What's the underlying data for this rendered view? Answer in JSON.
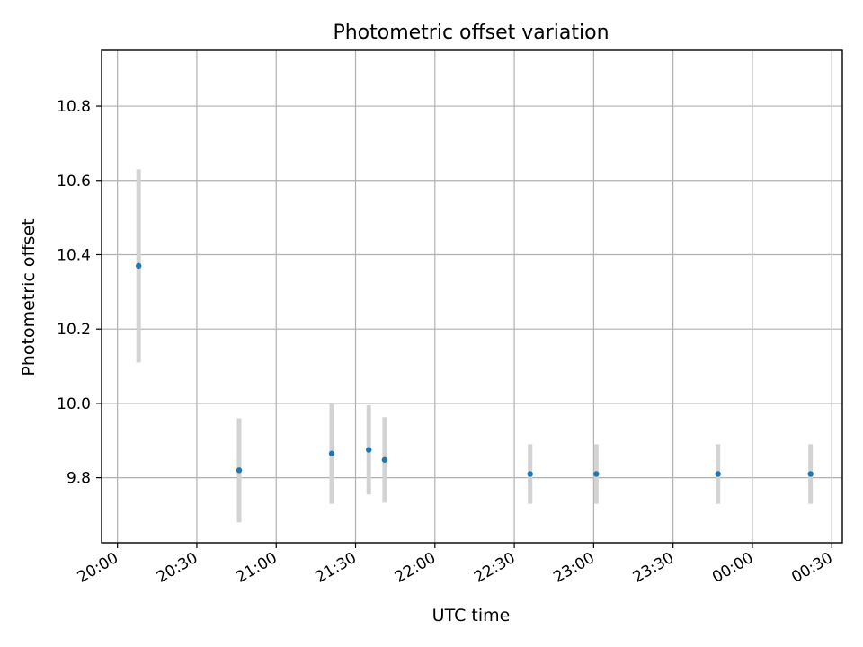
{
  "chart_data": {
    "type": "scatter",
    "title": "Photometric offset variation",
    "xlabel": "UTC time",
    "ylabel": "Photometric offset",
    "x_ticks": [
      "20:00",
      "20:30",
      "21:00",
      "21:30",
      "22:00",
      "22:30",
      "23:00",
      "23:30",
      "00:00",
      "00:30"
    ],
    "y_ticks": [
      "9.8",
      "10.0",
      "10.2",
      "10.4",
      "10.6",
      "10.8"
    ],
    "xlim": [
      "19:54",
      "00:34"
    ],
    "ylim": [
      9.625,
      10.95
    ],
    "grid": true,
    "series": [
      {
        "points": [
          {
            "x": "20:08",
            "y": 10.37,
            "err": 0.26
          },
          {
            "x": "20:46",
            "y": 9.82,
            "err": 0.14
          },
          {
            "x": "21:21",
            "y": 9.865,
            "err": 0.135
          },
          {
            "x": "21:35",
            "y": 9.875,
            "err": 0.12
          },
          {
            "x": "21:41",
            "y": 9.848,
            "err": 0.115
          },
          {
            "x": "22:36",
            "y": 9.81,
            "err": 0.08
          },
          {
            "x": "23:01",
            "y": 9.81,
            "err": 0.08
          },
          {
            "x": "23:47",
            "y": 9.81,
            "err": 0.08
          },
          {
            "x": "00:22",
            "y": 9.81,
            "err": 0.08
          }
        ]
      }
    ],
    "colors": {
      "point": "#1f77b4",
      "errorbar": "#d3d3d3",
      "grid": "#b0b0b0"
    }
  }
}
